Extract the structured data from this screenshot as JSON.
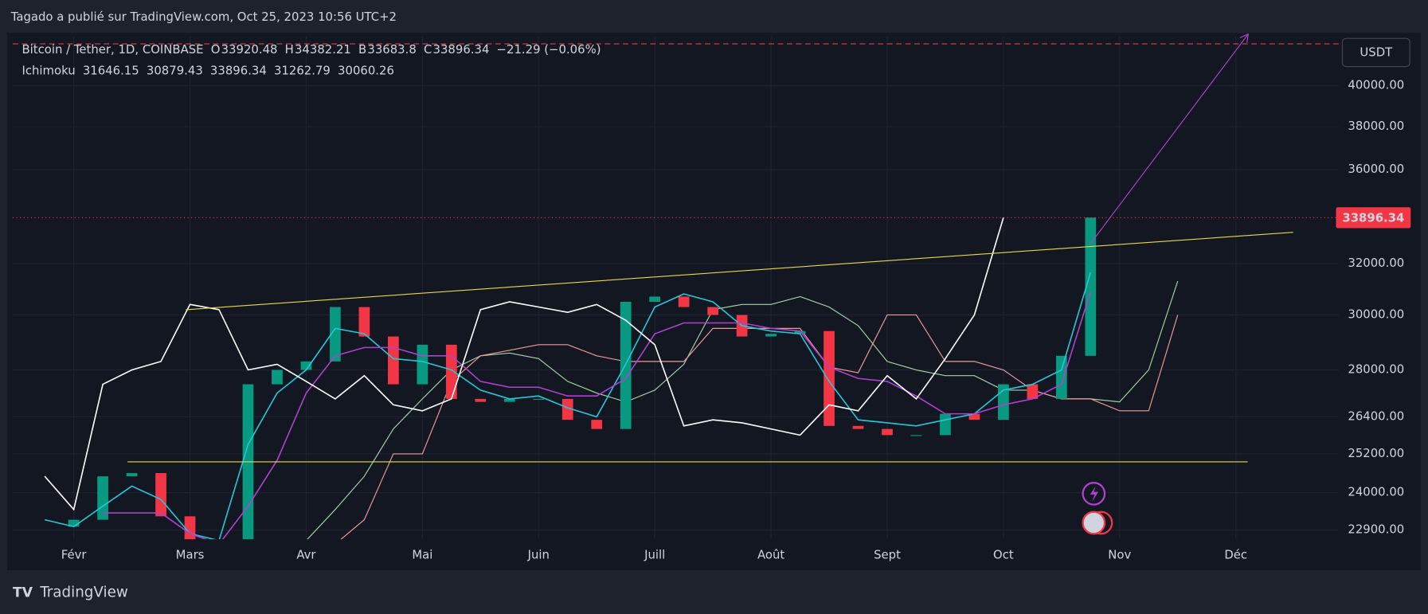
{
  "header": {
    "publisher": "Tagado a publié sur TradingView.com, Oct 25, 2023 10:56 UTC+2",
    "currency": "USDT",
    "brand": "TradingView"
  },
  "chart_data": {
    "type": "ichimoku",
    "ohlc": {
      "symbol": "Bitcoin / Tether, 1D, COINBASE",
      "open_label": "O",
      "open": 33920.48,
      "high_label": "H",
      "high": 34382.21,
      "low_label": "B",
      "low": 33683.8,
      "close_label": "C",
      "close": 33896.34,
      "change": "−21.29 (−0.06%)"
    },
    "indicator": "Ichimoku",
    "log_scale": true,
    "grid": true,
    "up_color": "#089981",
    "down_color": "#f23645",
    "ylim": [
      22640,
      42550
    ],
    "yticks": [
      {
        "value": 22900,
        "label": "22900.00"
      },
      {
        "value": 24000,
        "label": "24000.00"
      },
      {
        "value": 25200,
        "label": "25200.00"
      },
      {
        "value": 26400,
        "label": "26400.00"
      },
      {
        "value": 28000,
        "label": "28000.00"
      },
      {
        "value": 30000,
        "label": "30000.00"
      },
      {
        "value": 32000,
        "label": "32000.00"
      },
      {
        "value": 36000,
        "label": "36000.00"
      },
      {
        "value": 38000,
        "label": "38000.00"
      },
      {
        "value": 40000,
        "label": "40000.00"
      }
    ],
    "categories": [
      null,
      null,
      "Févr",
      null,
      null,
      null,
      "Mars",
      null,
      null,
      null,
      "Avr",
      null,
      null,
      null,
      "Mai",
      null,
      null,
      null,
      "Juin",
      null,
      null,
      null,
      "Juill",
      null,
      null,
      null,
      "Août",
      null,
      null,
      null,
      "Sept",
      null,
      null,
      null,
      "Oct",
      null,
      null,
      null,
      "Nov",
      null,
      null,
      null,
      "Déc",
      null,
      null,
      null
    ],
    "values": [
      null,
      23000,
      23200,
      24500,
      24600,
      23300,
      22400,
      22500,
      27500,
      28000,
      28300,
      30300,
      29200,
      27500,
      28900,
      27000,
      26900,
      27000,
      27000,
      26300,
      26000,
      30500,
      30700,
      30300,
      30000,
      29200,
      29300,
      29400,
      26100,
      26000,
      25800,
      25800,
      26500,
      26300,
      27500,
      27000,
      28500,
      33900,
      null,
      null,
      null,
      null,
      null,
      null,
      null,
      null
    ],
    "series": [
      {
        "color": "#26c6da",
        "legend_value": 31646.15,
        "values": [
          null,
          23200,
          23000,
          23600,
          24200,
          23800,
          22800,
          22600,
          25500,
          27200,
          28000,
          29500,
          29300,
          28400,
          28300,
          28000,
          27300,
          27000,
          27100,
          26700,
          26400,
          28200,
          30300,
          30800,
          30500,
          29600,
          29400,
          29300,
          27600,
          26300,
          26200,
          26100,
          26300,
          26500,
          27300,
          27500,
          28000,
          31650,
          null,
          null,
          null,
          null,
          null,
          null,
          null,
          null
        ]
      },
      {
        "color": "#b040d0",
        "legend_value": 30879.43,
        "values": [
          null,
          null,
          null,
          23400,
          23400,
          23400,
          22800,
          22500,
          23600,
          25000,
          27200,
          28500,
          28800,
          28800,
          28500,
          28500,
          27600,
          27400,
          27400,
          27100,
          27100,
          27700,
          29300,
          29700,
          29700,
          29700,
          29500,
          29400,
          28100,
          27700,
          27600,
          27100,
          26500,
          26500,
          26800,
          27000,
          27500,
          30900,
          null,
          null,
          null,
          null,
          null,
          null,
          null,
          null
        ]
      },
      {
        "color": "#ffffff",
        "legend_value": 33896.34,
        "values": [
          null,
          24500,
          23500,
          27500,
          28000,
          28300,
          30400,
          30200,
          28000,
          28200,
          27600,
          27000,
          27800,
          26800,
          26600,
          27000,
          30200,
          30500,
          30300,
          30100,
          30400,
          29800,
          28900,
          26100,
          26300,
          26200,
          26000,
          25800,
          26800,
          26600,
          27800,
          27000,
          28400,
          30000,
          33900,
          null,
          null,
          null,
          null,
          null,
          null,
          null,
          null,
          null,
          null,
          null
        ]
      },
      {
        "color": "#a5d6a7",
        "legend_value": 31262.79,
        "values": [
          null,
          null,
          null,
          null,
          null,
          null,
          null,
          null,
          null,
          null,
          22600,
          23500,
          24500,
          26000,
          27000,
          28000,
          28500,
          28600,
          28400,
          27600,
          27200,
          26900,
          27300,
          28200,
          30200,
          30400,
          30400,
          30700,
          30300,
          29600,
          28300,
          28000,
          27800,
          27800,
          27300,
          27300,
          27000,
          27000,
          26900,
          28000,
          31300,
          null,
          null,
          null,
          null,
          null
        ]
      },
      {
        "color": "#ef9a9a",
        "legend_value": 30060.26,
        "values": [
          null,
          null,
          null,
          null,
          null,
          null,
          null,
          null,
          null,
          null,
          22000,
          22500,
          23200,
          25200,
          25200,
          27600,
          28500,
          28700,
          28900,
          28900,
          28500,
          28300,
          28300,
          28300,
          29500,
          29500,
          29500,
          29500,
          28100,
          27900,
          30000,
          30000,
          28300,
          28300,
          28000,
          27300,
          27000,
          27000,
          26600,
          26600,
          30000,
          null,
          null,
          null,
          null,
          null
        ]
      }
    ]
  }
}
